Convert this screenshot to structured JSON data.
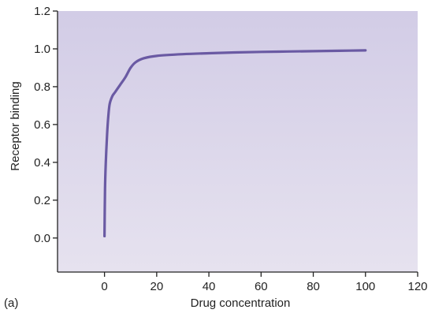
{
  "chart_data": {
    "type": "line",
    "title": "",
    "panel_label": "(a)",
    "xlabel": "Drug concentration",
    "ylabel": "Receptor binding",
    "xlim": [
      -18,
      120
    ],
    "ylim": [
      -0.18,
      1.2
    ],
    "xticks": [
      0,
      20,
      40,
      60,
      80,
      100,
      120
    ],
    "yticks": [
      0.0,
      0.2,
      0.4,
      0.6,
      0.8,
      1.0,
      1.2
    ],
    "ytick_labels": [
      "0.0",
      "0.2",
      "0.4",
      "0.6",
      "0.8",
      "1.0",
      "1.2"
    ],
    "grid": false,
    "legend": "none",
    "colors": {
      "plot_bg_top": "#d2cce6",
      "plot_bg_bottom": "#e6e2ef",
      "line": "#6a5aa3",
      "axis": "#222222"
    },
    "series": [
      {
        "x": [
          0,
          0.2,
          0.5,
          1,
          1.5,
          2,
          3,
          4,
          5,
          6,
          8,
          10,
          12,
          15,
          20,
          30,
          40,
          50,
          60,
          70,
          80,
          90,
          100
        ],
        "y": [
          0.01,
          0.26,
          0.4,
          0.55,
          0.65,
          0.71,
          0.75,
          0.77,
          0.79,
          0.81,
          0.85,
          0.9,
          0.93,
          0.95,
          0.963,
          0.972,
          0.977,
          0.981,
          0.984,
          0.986,
          0.988,
          0.99,
          0.992
        ]
      }
    ]
  }
}
